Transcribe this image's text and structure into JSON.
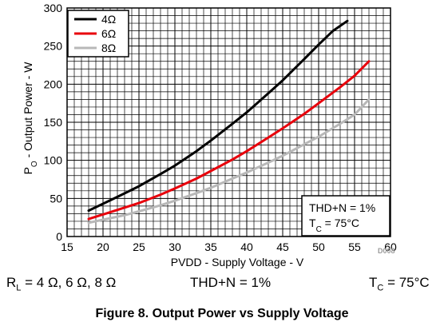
{
  "chart_data": {
    "type": "line",
    "title": "",
    "xlabel": "PVDD - Supply Voltage - V",
    "ylabel_main": "P",
    "ylabel_sub": "O",
    "ylabel_rest": " - Output Power - W",
    "xlim": [
      15,
      60
    ],
    "ylim": [
      0,
      300
    ],
    "x_ticks": [
      "15",
      "20",
      "25",
      "30",
      "35",
      "40",
      "45",
      "50",
      "55",
      "60"
    ],
    "y_ticks": [
      "0",
      "50",
      "100",
      "150",
      "200",
      "250",
      "300"
    ],
    "grid": true,
    "legend_position": "top-left",
    "series": [
      {
        "name": "4Ω",
        "color": "#000000",
        "x": [
          18,
          20,
          22,
          25,
          28,
          30,
          33,
          35,
          38,
          40,
          43,
          45,
          48,
          50,
          52,
          54
        ],
        "y": [
          34,
          43,
          52,
          66,
          82,
          93,
          112,
          126,
          148,
          163,
          188,
          205,
          233,
          252,
          270,
          283
        ]
      },
      {
        "name": "6Ω",
        "color": "#e8000b",
        "x": [
          18,
          20,
          23,
          25,
          28,
          30,
          33,
          35,
          38,
          40,
          43,
          45,
          48,
          50,
          53,
          55,
          57
        ],
        "y": [
          23,
          29,
          38,
          44,
          55,
          63,
          76,
          86,
          101,
          112,
          130,
          142,
          161,
          175,
          196,
          211,
          230
        ]
      },
      {
        "name": "8Ω",
        "color": "#b8b8b8",
        "x": [
          18,
          20,
          23,
          25,
          28,
          30,
          33,
          35,
          38,
          40,
          43,
          45,
          48,
          50,
          53,
          55,
          57
        ],
        "y": [
          18,
          22,
          28,
          33,
          41,
          47,
          57,
          64,
          76,
          84,
          97,
          106,
          121,
          131,
          148,
          160,
          180
        ]
      }
    ],
    "note_line1": "THD+N = 1%",
    "note_line2_main": "T",
    "note_line2_sub": "C",
    "note_line2_rest": " = 75°C",
    "figure_code": "D008"
  },
  "conditions": {
    "rl_main": "R",
    "rl_sub": "L",
    "rl_rest": " = 4 Ω, 6 Ω, 8 Ω",
    "thd": "THD+N = 1%",
    "tc_main": "T",
    "tc_sub": "C",
    "tc_rest": " = 75°C"
  },
  "caption": "Figure 8. Output Power vs Supply Voltage"
}
